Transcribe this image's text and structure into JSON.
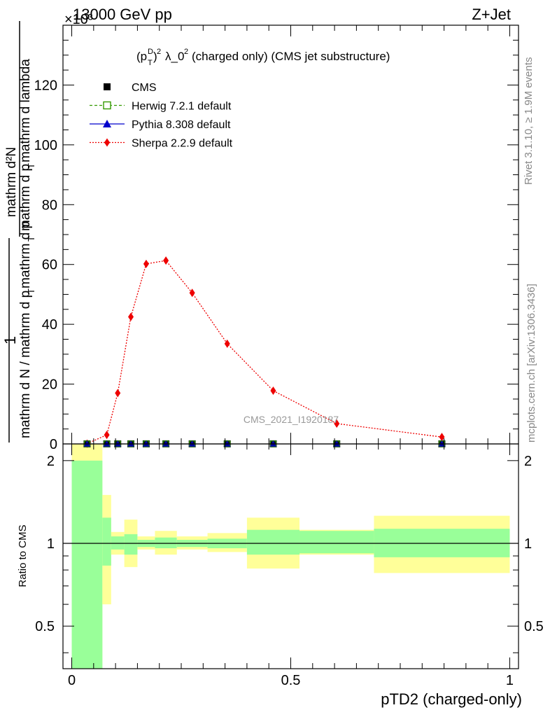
{
  "header": {
    "left": "13000 GeV pp",
    "right": "Z+Jet",
    "exponent": "×10³",
    "plot_title": "(p_T^D)^2 λ_0^2 (charged only) (CMS jet substructure)",
    "watermark": "CMS_2021_I1920187"
  },
  "side_labels": {
    "rivet": "Rivet 3.1.10, ≥ 1.9M events",
    "mcplots": "mcplots.cern.ch [arXiv:1306.3436]"
  },
  "chart_data": [
    {
      "type": "line",
      "panel": "main",
      "xlim": [
        -0.02,
        1.02
      ],
      "ylim": [
        0,
        140
      ],
      "xlabel": "pTD2 (charged-only)",
      "ylabel": {
        "prefix": "1",
        "prefix_denominator": "mathrm d N / mathrm d p_T mathrm d p_T mathrm d lambda",
        "numerator": "mathrm d²N",
        "denominator": "mathrm d p_T mathrm d lambda"
      },
      "yticks": [
        0,
        20,
        40,
        60,
        80,
        100,
        120
      ],
      "legend_position": "top-left",
      "legend": [
        {
          "label": "CMS",
          "marker": "square",
          "color": "#000000",
          "line": "none"
        },
        {
          "label": "Herwig 7.2.1 default",
          "marker": "open-square",
          "color": "#339900",
          "line": "dashed"
        },
        {
          "label": "Pythia 8.308 default",
          "marker": "triangle",
          "color": "#0000cc",
          "line": "solid"
        },
        {
          "label": "Sherpa 2.2.9 default",
          "marker": "diamond",
          "color": "#ee0000",
          "line": "dotted"
        }
      ],
      "x": [
        0.035,
        0.08,
        0.105,
        0.135,
        0.17,
        0.215,
        0.275,
        0.355,
        0.46,
        0.605,
        0.845
      ],
      "series": [
        {
          "name": "CMS",
          "values": [
            0.02,
            0.03,
            0.03,
            0.03,
            0.03,
            0.03,
            0.03,
            0.03,
            0.03,
            0.03,
            0.03
          ]
        },
        {
          "name": "Herwig 7.2.1 default",
          "values": [
            0.02,
            0.03,
            0.03,
            0.03,
            0.03,
            0.03,
            0.03,
            0.03,
            0.03,
            0.03,
            0.03
          ]
        },
        {
          "name": "Pythia 8.308 default",
          "values": [
            0.02,
            0.03,
            0.03,
            0.03,
            0.03,
            0.03,
            0.03,
            0.03,
            0.03,
            0.03,
            0.03
          ]
        },
        {
          "name": "Sherpa 2.2.9 default",
          "values": [
            0.1,
            3,
            17,
            42.5,
            60.2,
            61.3,
            50.5,
            33.5,
            17.8,
            6.8,
            2.3
          ]
        }
      ]
    },
    {
      "type": "area",
      "panel": "ratio",
      "ylabel": "Ratio to CMS",
      "xlim": [
        -0.02,
        1.02
      ],
      "ylim": [
        0.35,
        2.3
      ],
      "log_y": true,
      "yticks": [
        0.5,
        1,
        2
      ],
      "xticks": [
        0,
        0.5,
        1
      ],
      "reference_line": 1,
      "band_colors": {
        "inner": "#99ff99",
        "outer": "#ffff99"
      },
      "bins": [
        {
          "x0": 0.0,
          "x1": 0.07,
          "inner": [
            0.35,
            2.0
          ],
          "outer": [
            0.35,
            2.4
          ]
        },
        {
          "x0": 0.07,
          "x1": 0.09,
          "inner": [
            0.83,
            1.24
          ],
          "outer": [
            0.6,
            1.5
          ]
        },
        {
          "x0": 0.09,
          "x1": 0.12,
          "inner": [
            0.95,
            1.06
          ],
          "outer": [
            0.91,
            1.1
          ]
        },
        {
          "x0": 0.12,
          "x1": 0.15,
          "inner": [
            0.91,
            1.08
          ],
          "outer": [
            0.82,
            1.22
          ]
        },
        {
          "x0": 0.15,
          "x1": 0.19,
          "inner": [
            0.97,
            1.03
          ],
          "outer": [
            0.95,
            1.06
          ]
        },
        {
          "x0": 0.19,
          "x1": 0.24,
          "inner": [
            0.96,
            1.05
          ],
          "outer": [
            0.91,
            1.11
          ]
        },
        {
          "x0": 0.24,
          "x1": 0.31,
          "inner": [
            0.97,
            1.03
          ],
          "outer": [
            0.95,
            1.06
          ]
        },
        {
          "x0": 0.31,
          "x1": 0.4,
          "inner": [
            0.96,
            1.04
          ],
          "outer": [
            0.93,
            1.09
          ]
        },
        {
          "x0": 0.4,
          "x1": 0.52,
          "inner": [
            0.91,
            1.12
          ],
          "outer": [
            0.81,
            1.24
          ]
        },
        {
          "x0": 0.52,
          "x1": 0.69,
          "inner": [
            0.92,
            1.11
          ],
          "outer": [
            0.91,
            1.12
          ]
        },
        {
          "x0": 0.69,
          "x1": 1.0,
          "inner": [
            0.89,
            1.13
          ],
          "outer": [
            0.78,
            1.26
          ]
        }
      ]
    }
  ]
}
